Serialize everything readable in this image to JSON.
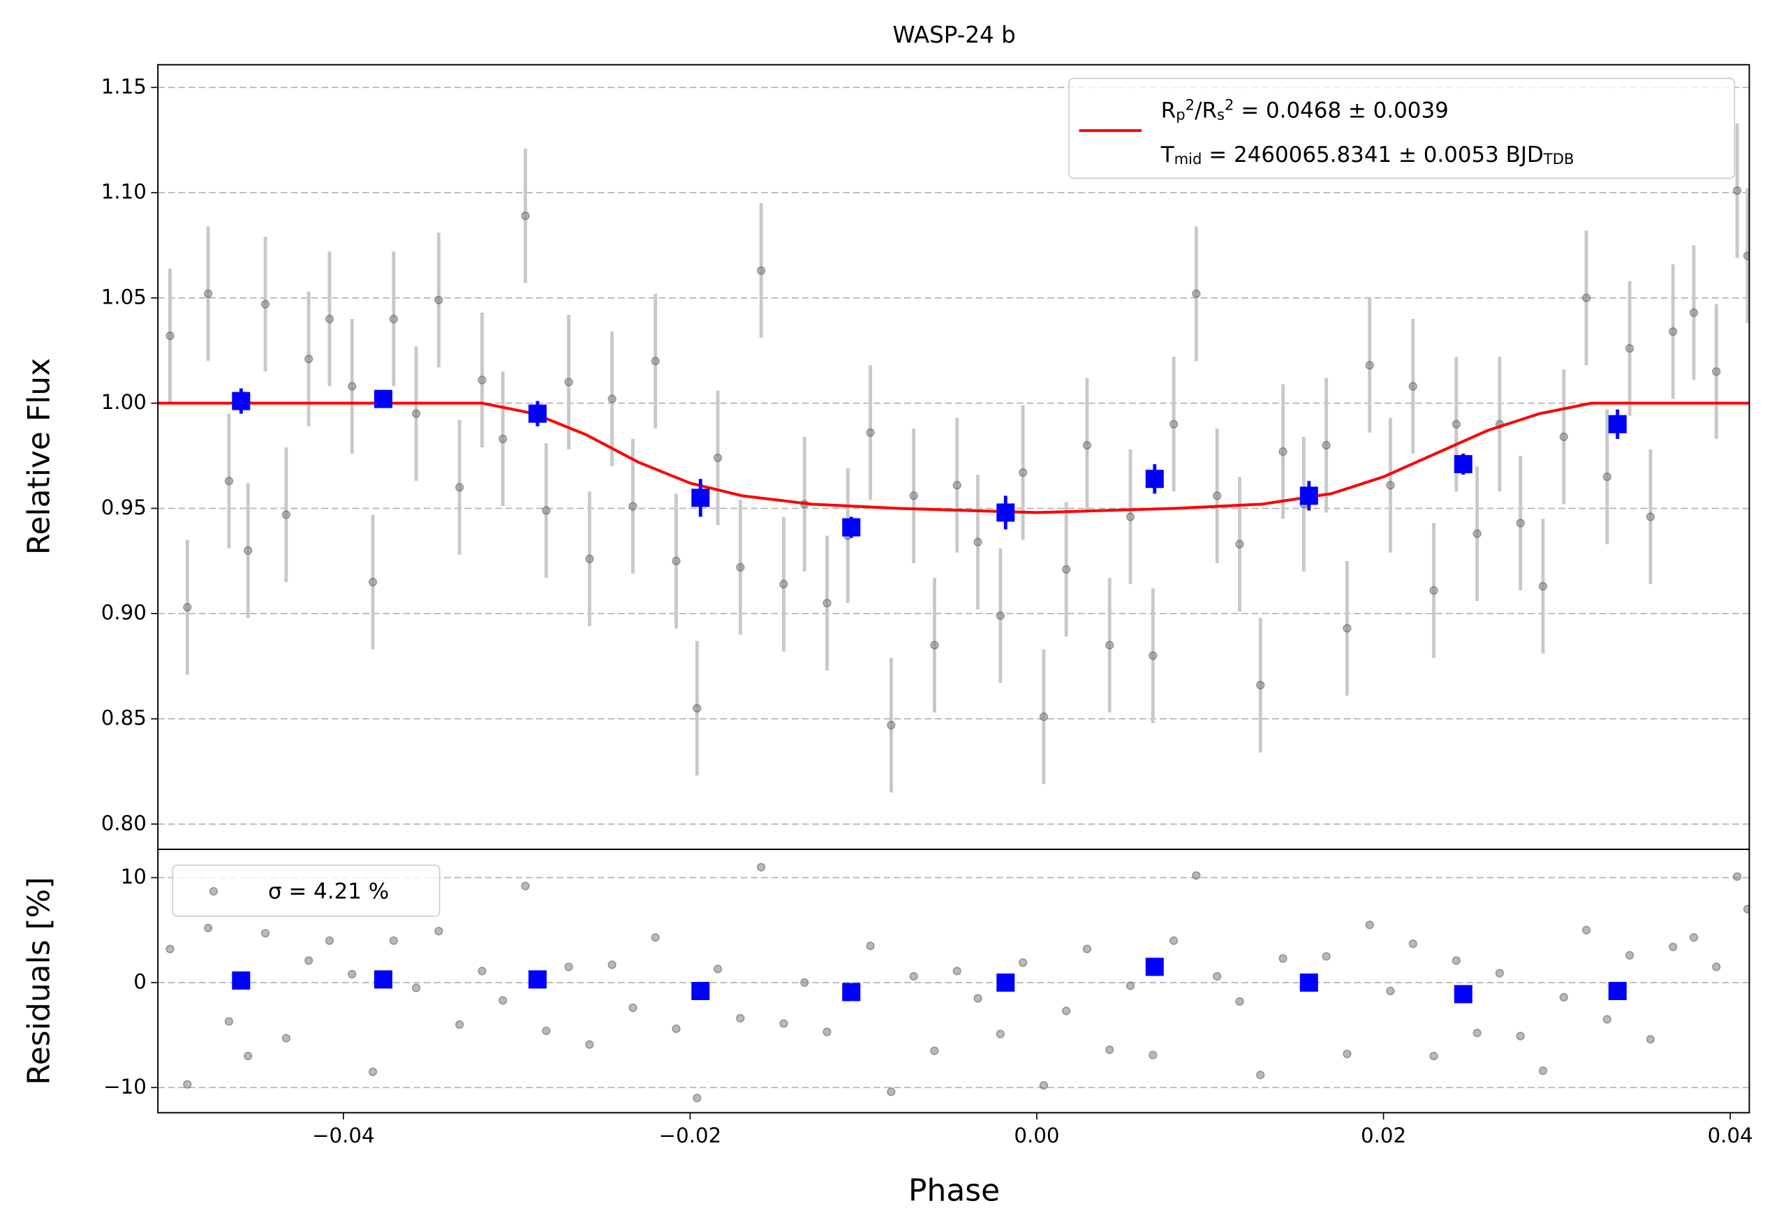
{
  "chart_data": [
    {
      "type": "scatter",
      "title": "WASP-24 b",
      "ylabel": "Relative Flux",
      "xlim": [
        -0.0507,
        0.0411
      ],
      "ylim": [
        0.788,
        1.1608
      ],
      "yticks": [
        {
          "value": 0.8,
          "label": "0.80"
        },
        0.85,
        {
          "value": 0.9,
          "label": "0.90"
        },
        0.95,
        {
          "value": 1.0,
          "label": "1.00"
        },
        1.05,
        {
          "value": 1.1,
          "label": "1.10"
        },
        1.15
      ],
      "grid": true,
      "raw": {
        "color": "#808080",
        "yerr": 0.032,
        "x": [
          -0.05,
          -0.049,
          -0.0478,
          -0.0466,
          -0.0455,
          -0.0445,
          -0.0433,
          -0.042,
          -0.0408,
          -0.0395,
          -0.0383,
          -0.0371,
          -0.0358,
          -0.0345,
          -0.0333,
          -0.032,
          -0.0308,
          -0.0295,
          -0.0283,
          -0.027,
          -0.0258,
          -0.0245,
          -0.0233,
          -0.022,
          -0.0208,
          -0.0196,
          -0.0184,
          -0.0171,
          -0.0159,
          -0.0146,
          -0.0134,
          -0.0121,
          -0.0109,
          -0.0096,
          -0.0084,
          -0.0071,
          -0.0059,
          -0.0046,
          -0.0034,
          -0.0021,
          -0.0008,
          0.0004,
          0.0017,
          0.0029,
          0.0042,
          0.0054,
          0.0067,
          0.0079,
          0.0092,
          0.0104,
          0.0117,
          0.0129,
          0.0142,
          0.0154,
          0.0167,
          0.0179,
          0.0192,
          0.0204,
          0.0217,
          0.0229,
          0.0242,
          0.0254,
          0.0267,
          0.0279,
          0.0292,
          0.0304,
          0.0317,
          0.0329,
          0.0342,
          0.0354,
          0.0367,
          0.0379,
          0.0392,
          0.0404,
          0.041
        ],
        "values": [
          1.032,
          0.903,
          1.052,
          0.963,
          0.93,
          1.047,
          0.947,
          1.021,
          1.04,
          1.008,
          0.915,
          1.04,
          0.995,
          1.049,
          0.96,
          1.011,
          0.983,
          1.089,
          0.949,
          1.01,
          0.926,
          1.002,
          0.951,
          1.02,
          0.925,
          0.855,
          0.974,
          0.922,
          1.063,
          0.914,
          0.952,
          0.905,
          0.937,
          0.986,
          0.847,
          0.956,
          0.885,
          0.961,
          0.934,
          0.899,
          0.967,
          0.851,
          0.921,
          0.98,
          0.885,
          0.946,
          0.88,
          0.99,
          1.052,
          0.956,
          0.933,
          0.866,
          0.977,
          0.952,
          0.98,
          0.893,
          1.018,
          0.961,
          1.008,
          0.911,
          0.99,
          0.938,
          0.99,
          0.943,
          0.913,
          0.984,
          1.05,
          0.965,
          1.026,
          0.946,
          1.034,
          1.043,
          1.015,
          1.101,
          1.07
        ]
      },
      "binned": {
        "color": "#0000ff",
        "x": [
          -0.0459,
          -0.0377,
          -0.0288,
          -0.0194,
          -0.0107,
          -0.0018,
          0.0068,
          0.0157,
          0.0246,
          0.0335
        ],
        "values": [
          1.001,
          1.002,
          0.995,
          0.955,
          0.941,
          0.948,
          0.964,
          0.956,
          0.971,
          0.99
        ],
        "errors": [
          0.006,
          0.004,
          0.006,
          0.009,
          0.005,
          0.008,
          0.007,
          0.007,
          0.005,
          0.007
        ]
      },
      "model": {
        "color": "#ff0000",
        "x": [
          -0.0507,
          -0.032,
          -0.029,
          -0.026,
          -0.023,
          -0.02,
          -0.017,
          -0.013,
          -0.008,
          0.0,
          0.008,
          0.013,
          0.017,
          0.02,
          0.023,
          0.026,
          0.029,
          0.032,
          0.0411
        ],
        "values": [
          1.0,
          1.0,
          0.995,
          0.985,
          0.972,
          0.962,
          0.956,
          0.952,
          0.95,
          0.948,
          0.95,
          0.952,
          0.957,
          0.965,
          0.976,
          0.987,
          0.995,
          1.0,
          1.0
        ],
        "legend": [
          [
            {
              "t": "R"
            },
            {
              "t": "p",
              "pos": "sub"
            },
            {
              "t": "2",
              "pos": "sup"
            },
            {
              "t": "/R"
            },
            {
              "t": "s",
              "pos": "sub"
            },
            {
              "t": "2",
              "pos": "sup"
            },
            {
              "t": " = 0.0468 ± 0.0039"
            }
          ],
          [
            {
              "t": "T"
            },
            {
              "t": "mid",
              "pos": "sub"
            },
            {
              "t": " = 2460065.8341 ± 0.0053 BJD"
            },
            {
              "t": "TDB",
              "pos": "sub"
            }
          ]
        ]
      }
    },
    {
      "type": "scatter",
      "ylabel": "Residuals [%]",
      "xlabel": "Phase",
      "xlim": [
        -0.0507,
        0.0411
      ],
      "ylim": [
        -12.4,
        12.7
      ],
      "xticks": [
        {
          "value": -0.04,
          "label": "−0.04"
        },
        {
          "value": -0.02,
          "label": "−0.02"
        },
        {
          "value": 0,
          "label": "0.00"
        },
        0.02,
        0.04
      ],
      "yticks": [
        {
          "value": -10,
          "label": "−10"
        },
        0,
        10
      ],
      "grid": true,
      "legend": "σ = 4.21 %",
      "raw": {
        "color": "#808080",
        "values": [
          3.2,
          -9.7,
          5.2,
          -3.7,
          -7.0,
          4.7,
          -5.3,
          2.1,
          4.0,
          0.8,
          -8.5,
          4.0,
          -0.5,
          4.9,
          -4.0,
          1.1,
          -1.7,
          9.2,
          -4.6,
          1.5,
          -5.9,
          1.7,
          -2.4,
          4.3,
          -4.4,
          -11.0,
          1.3,
          -3.4,
          11.0,
          -3.9,
          0.0,
          -4.7,
          -1.4,
          3.5,
          -10.4,
          0.6,
          -6.5,
          1.1,
          -1.5,
          -4.9,
          1.9,
          -9.8,
          -2.7,
          3.2,
          -6.4,
          -0.3,
          -6.9,
          4.0,
          10.2,
          0.6,
          -1.8,
          -8.8,
          2.3,
          -0.4,
          2.5,
          -6.8,
          5.5,
          -0.8,
          3.7,
          -7.0,
          2.1,
          -4.8,
          0.9,
          -5.1,
          -8.4,
          -1.4,
          5.0,
          -3.5,
          2.6,
          -5.4,
          3.4,
          4.3,
          1.5,
          10.1,
          7.0
        ]
      },
      "binned": {
        "color": "#0000ff",
        "values": [
          0.2,
          0.3,
          0.3,
          -0.8,
          -0.9,
          0.0,
          1.5,
          0.0,
          -1.1,
          -0.8
        ]
      }
    }
  ]
}
